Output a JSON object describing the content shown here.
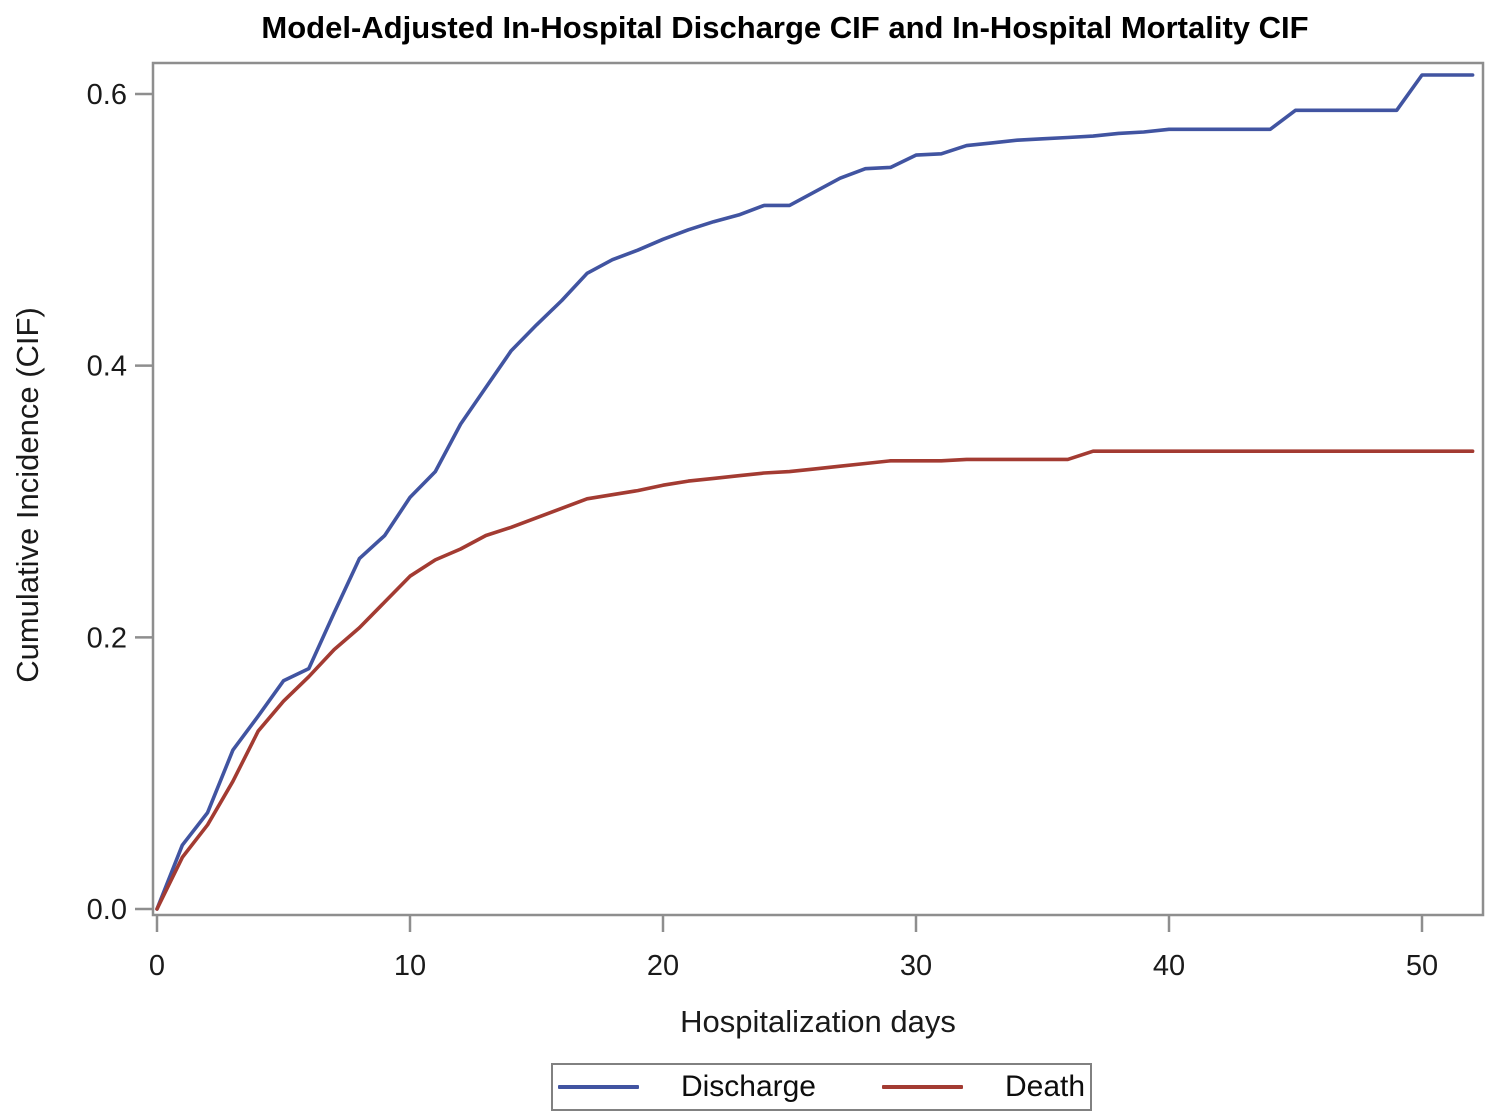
{
  "chart_data": {
    "type": "line",
    "title": "Model-Adjusted In-Hospital Discharge CIF and In-Hospital Mortality CIF",
    "xlabel": "Hospitalization days",
    "ylabel": "Cumulative Incidence (CIF)",
    "xlim": [
      0,
      52.6
    ],
    "ylim": [
      0,
      0.623
    ],
    "grid": false,
    "legend_position": "bottom-center",
    "frame_color": "#8e8e8e",
    "xtick_values": [
      0,
      10,
      20,
      30,
      40,
      50
    ],
    "xtick_labels": [
      "0",
      "10",
      "20",
      "30",
      "40",
      "50"
    ],
    "ytick_values": [
      0.0,
      0.2,
      0.4,
      0.6
    ],
    "ytick_labels": [
      "0.0",
      "0.2",
      "0.4",
      "0.6"
    ],
    "x_unit": "days",
    "x_days": [
      0,
      1,
      2,
      3,
      4,
      5,
      6,
      7,
      8,
      9,
      10,
      11,
      12,
      13,
      14,
      15,
      16,
      17,
      18,
      19,
      20,
      21,
      22,
      23,
      24,
      25,
      26,
      27,
      28,
      29,
      30,
      31,
      32,
      33,
      34,
      35,
      36,
      37,
      38,
      39,
      40,
      41,
      42,
      43,
      44,
      45,
      46,
      47,
      48,
      49,
      50,
      51,
      52
    ],
    "series": [
      {
        "name": "Discharge",
        "color": "#4154a1",
        "values": [
          0.0,
          0.047,
          0.071,
          0.117,
          0.142,
          0.168,
          0.177,
          0.218,
          0.258,
          0.275,
          0.303,
          0.322,
          0.357,
          0.384,
          0.411,
          0.43,
          0.448,
          0.468,
          0.478,
          0.485,
          0.493,
          0.5,
          0.506,
          0.511,
          0.518,
          0.518,
          0.528,
          0.538,
          0.545,
          0.546,
          0.555,
          0.556,
          0.562,
          0.564,
          0.566,
          0.567,
          0.568,
          0.569,
          0.571,
          0.572,
          0.574,
          0.574,
          0.574,
          0.574,
          0.574,
          0.588,
          0.588,
          0.588,
          0.588,
          0.588,
          0.614,
          0.614,
          0.614
        ]
      },
      {
        "name": "Death",
        "color": "#a33b32",
        "values": [
          0.0,
          0.038,
          0.062,
          0.094,
          0.131,
          0.153,
          0.171,
          0.191,
          0.207,
          0.226,
          0.245,
          0.257,
          0.265,
          0.275,
          0.281,
          0.288,
          0.295,
          0.302,
          0.305,
          0.308,
          0.312,
          0.315,
          0.317,
          0.319,
          0.321,
          0.322,
          0.324,
          0.326,
          0.328,
          0.33,
          0.33,
          0.33,
          0.331,
          0.331,
          0.331,
          0.331,
          0.331,
          0.337,
          0.337,
          0.337,
          0.337,
          0.337,
          0.337,
          0.337,
          0.337,
          0.337,
          0.337,
          0.337,
          0.337,
          0.337,
          0.337,
          0.337,
          0.337
        ]
      }
    ]
  }
}
